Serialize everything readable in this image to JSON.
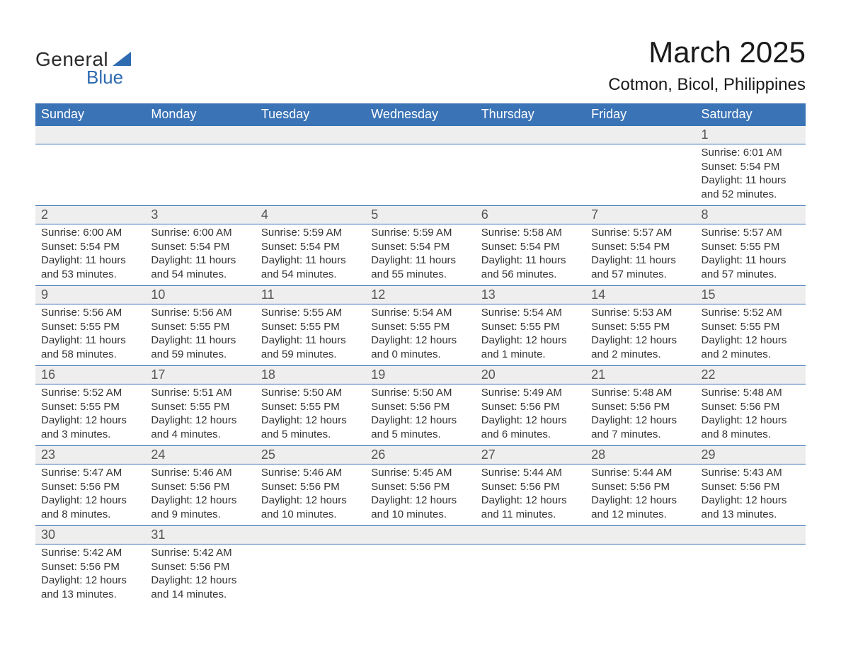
{
  "brand": {
    "text1": "General",
    "text2": "Blue"
  },
  "title": "March 2025",
  "location": "Cotmon, Bicol, Philippines",
  "colors": {
    "header_bg": "#3a73b6",
    "header_text": "#ffffff",
    "row_border": "#3a73b6",
    "daynum_bg": "#eeeeee",
    "body_text": "#333333",
    "brand_blue": "#2e6bb0"
  },
  "weekdays": [
    "Sunday",
    "Monday",
    "Tuesday",
    "Wednesday",
    "Thursday",
    "Friday",
    "Saturday"
  ],
  "weeks": [
    [
      null,
      null,
      null,
      null,
      null,
      null,
      {
        "n": "1",
        "sr": "Sunrise: 6:01 AM",
        "ss": "Sunset: 5:54 PM",
        "d1": "Daylight: 11 hours",
        "d2": "and 52 minutes."
      }
    ],
    [
      {
        "n": "2",
        "sr": "Sunrise: 6:00 AM",
        "ss": "Sunset: 5:54 PM",
        "d1": "Daylight: 11 hours",
        "d2": "and 53 minutes."
      },
      {
        "n": "3",
        "sr": "Sunrise: 6:00 AM",
        "ss": "Sunset: 5:54 PM",
        "d1": "Daylight: 11 hours",
        "d2": "and 54 minutes."
      },
      {
        "n": "4",
        "sr": "Sunrise: 5:59 AM",
        "ss": "Sunset: 5:54 PM",
        "d1": "Daylight: 11 hours",
        "d2": "and 54 minutes."
      },
      {
        "n": "5",
        "sr": "Sunrise: 5:59 AM",
        "ss": "Sunset: 5:54 PM",
        "d1": "Daylight: 11 hours",
        "d2": "and 55 minutes."
      },
      {
        "n": "6",
        "sr": "Sunrise: 5:58 AM",
        "ss": "Sunset: 5:54 PM",
        "d1": "Daylight: 11 hours",
        "d2": "and 56 minutes."
      },
      {
        "n": "7",
        "sr": "Sunrise: 5:57 AM",
        "ss": "Sunset: 5:54 PM",
        "d1": "Daylight: 11 hours",
        "d2": "and 57 minutes."
      },
      {
        "n": "8",
        "sr": "Sunrise: 5:57 AM",
        "ss": "Sunset: 5:55 PM",
        "d1": "Daylight: 11 hours",
        "d2": "and 57 minutes."
      }
    ],
    [
      {
        "n": "9",
        "sr": "Sunrise: 5:56 AM",
        "ss": "Sunset: 5:55 PM",
        "d1": "Daylight: 11 hours",
        "d2": "and 58 minutes."
      },
      {
        "n": "10",
        "sr": "Sunrise: 5:56 AM",
        "ss": "Sunset: 5:55 PM",
        "d1": "Daylight: 11 hours",
        "d2": "and 59 minutes."
      },
      {
        "n": "11",
        "sr": "Sunrise: 5:55 AM",
        "ss": "Sunset: 5:55 PM",
        "d1": "Daylight: 11 hours",
        "d2": "and 59 minutes."
      },
      {
        "n": "12",
        "sr": "Sunrise: 5:54 AM",
        "ss": "Sunset: 5:55 PM",
        "d1": "Daylight: 12 hours",
        "d2": "and 0 minutes."
      },
      {
        "n": "13",
        "sr": "Sunrise: 5:54 AM",
        "ss": "Sunset: 5:55 PM",
        "d1": "Daylight: 12 hours",
        "d2": "and 1 minute."
      },
      {
        "n": "14",
        "sr": "Sunrise: 5:53 AM",
        "ss": "Sunset: 5:55 PM",
        "d1": "Daylight: 12 hours",
        "d2": "and 2 minutes."
      },
      {
        "n": "15",
        "sr": "Sunrise: 5:52 AM",
        "ss": "Sunset: 5:55 PM",
        "d1": "Daylight: 12 hours",
        "d2": "and 2 minutes."
      }
    ],
    [
      {
        "n": "16",
        "sr": "Sunrise: 5:52 AM",
        "ss": "Sunset: 5:55 PM",
        "d1": "Daylight: 12 hours",
        "d2": "and 3 minutes."
      },
      {
        "n": "17",
        "sr": "Sunrise: 5:51 AM",
        "ss": "Sunset: 5:55 PM",
        "d1": "Daylight: 12 hours",
        "d2": "and 4 minutes."
      },
      {
        "n": "18",
        "sr": "Sunrise: 5:50 AM",
        "ss": "Sunset: 5:55 PM",
        "d1": "Daylight: 12 hours",
        "d2": "and 5 minutes."
      },
      {
        "n": "19",
        "sr": "Sunrise: 5:50 AM",
        "ss": "Sunset: 5:56 PM",
        "d1": "Daylight: 12 hours",
        "d2": "and 5 minutes."
      },
      {
        "n": "20",
        "sr": "Sunrise: 5:49 AM",
        "ss": "Sunset: 5:56 PM",
        "d1": "Daylight: 12 hours",
        "d2": "and 6 minutes."
      },
      {
        "n": "21",
        "sr": "Sunrise: 5:48 AM",
        "ss": "Sunset: 5:56 PM",
        "d1": "Daylight: 12 hours",
        "d2": "and 7 minutes."
      },
      {
        "n": "22",
        "sr": "Sunrise: 5:48 AM",
        "ss": "Sunset: 5:56 PM",
        "d1": "Daylight: 12 hours",
        "d2": "and 8 minutes."
      }
    ],
    [
      {
        "n": "23",
        "sr": "Sunrise: 5:47 AM",
        "ss": "Sunset: 5:56 PM",
        "d1": "Daylight: 12 hours",
        "d2": "and 8 minutes."
      },
      {
        "n": "24",
        "sr": "Sunrise: 5:46 AM",
        "ss": "Sunset: 5:56 PM",
        "d1": "Daylight: 12 hours",
        "d2": "and 9 minutes."
      },
      {
        "n": "25",
        "sr": "Sunrise: 5:46 AM",
        "ss": "Sunset: 5:56 PM",
        "d1": "Daylight: 12 hours",
        "d2": "and 10 minutes."
      },
      {
        "n": "26",
        "sr": "Sunrise: 5:45 AM",
        "ss": "Sunset: 5:56 PM",
        "d1": "Daylight: 12 hours",
        "d2": "and 10 minutes."
      },
      {
        "n": "27",
        "sr": "Sunrise: 5:44 AM",
        "ss": "Sunset: 5:56 PM",
        "d1": "Daylight: 12 hours",
        "d2": "and 11 minutes."
      },
      {
        "n": "28",
        "sr": "Sunrise: 5:44 AM",
        "ss": "Sunset: 5:56 PM",
        "d1": "Daylight: 12 hours",
        "d2": "and 12 minutes."
      },
      {
        "n": "29",
        "sr": "Sunrise: 5:43 AM",
        "ss": "Sunset: 5:56 PM",
        "d1": "Daylight: 12 hours",
        "d2": "and 13 minutes."
      }
    ],
    [
      {
        "n": "30",
        "sr": "Sunrise: 5:42 AM",
        "ss": "Sunset: 5:56 PM",
        "d1": "Daylight: 12 hours",
        "d2": "and 13 minutes."
      },
      {
        "n": "31",
        "sr": "Sunrise: 5:42 AM",
        "ss": "Sunset: 5:56 PM",
        "d1": "Daylight: 12 hours",
        "d2": "and 14 minutes."
      },
      null,
      null,
      null,
      null,
      null
    ]
  ]
}
